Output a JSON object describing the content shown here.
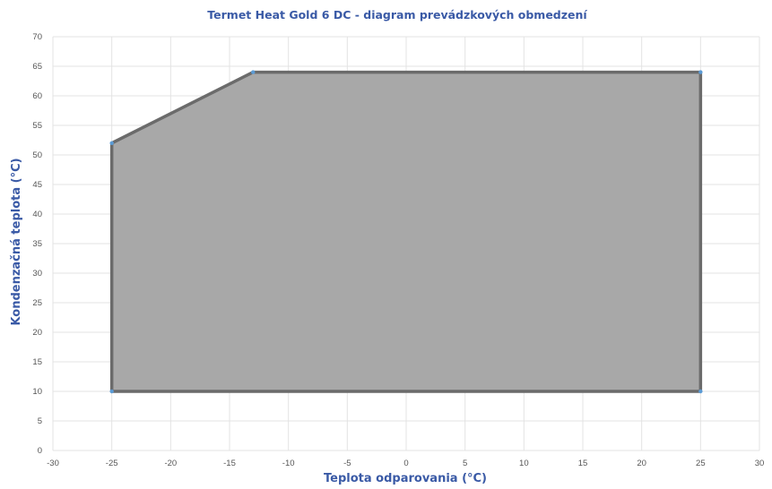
{
  "chart_data": {
    "type": "area",
    "title": "Termet Heat Gold 6 DC - diagram prevádzkových obmedzení",
    "xlabel": "Teplota odparovania (°C)",
    "ylabel": "Kondenzačná teplota (°C)",
    "xlim": [
      -30,
      30
    ],
    "ylim": [
      0,
      70
    ],
    "xticks": [
      -30,
      -25,
      -20,
      -15,
      -10,
      -5,
      0,
      5,
      10,
      15,
      20,
      25,
      30
    ],
    "yticks": [
      0,
      5,
      10,
      15,
      20,
      25,
      30,
      35,
      40,
      45,
      50,
      55,
      60,
      65,
      70
    ],
    "grid": true,
    "series": [
      {
        "x": [
          -25,
          -13,
          25,
          25,
          -25
        ],
        "y": [
          52,
          64,
          64,
          10,
          10
        ]
      }
    ],
    "colors": {
      "fill": "#a8a8a8",
      "stroke": "#6b6b6b",
      "marker": "#5b9bd5",
      "text": "#3a5aa6"
    }
  }
}
